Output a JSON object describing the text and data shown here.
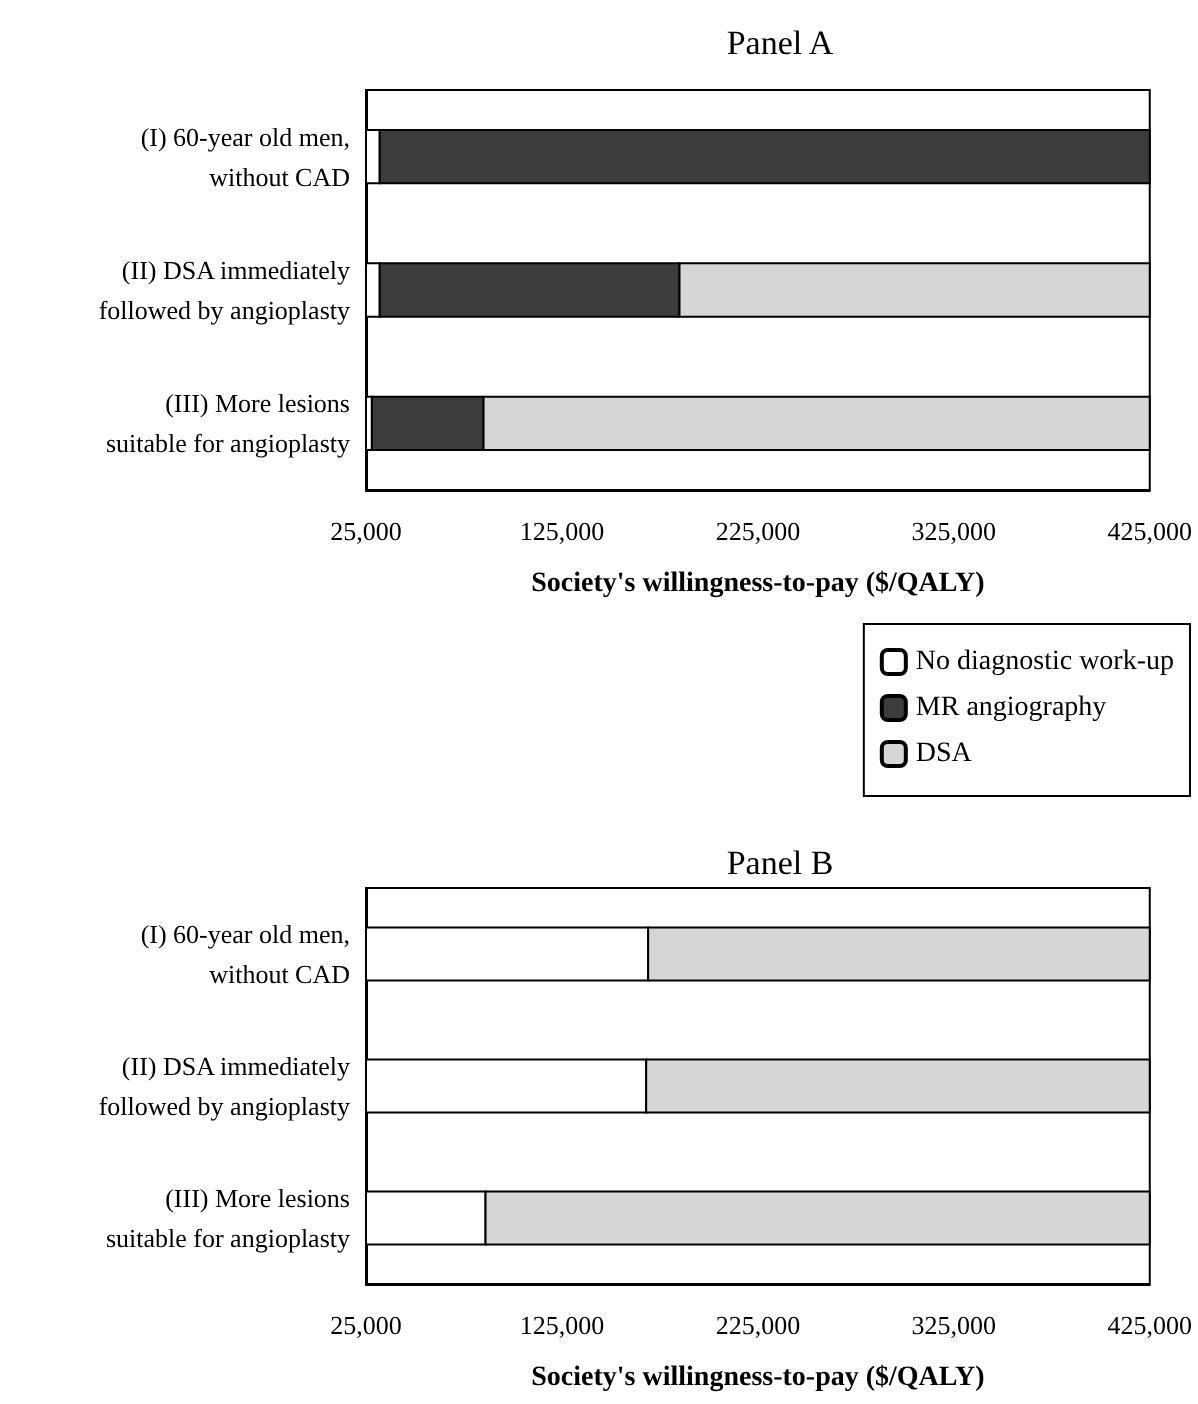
{
  "chart_data": [
    {
      "type": "bar",
      "title": "Panel A",
      "xlabel": "Society's willingness-to-pay ($/QALY)",
      "orientation": "horizontal",
      "stacked": true,
      "categories": [
        "(I) 60-year old men,\nwithout CAD",
        "(II) DSA immediately\nfollowed by angioplasty",
        "(III) More lesions\nsuitable for angioplasty"
      ],
      "series": [
        {
          "color": "#ffffff",
          "values": [
            32000,
            32000,
            28000
          ]
        },
        {
          "color": "#3c3c3c",
          "values": [
            393000,
            153000,
            57000
          ]
        },
        {
          "color": "#d6d6d6",
          "values": [
            null,
            240000,
            340000
          ]
        }
      ],
      "xlim": [
        25000,
        425000
      ],
      "xticks": [
        {
          "value": 25000,
          "label": "25,000"
        },
        {
          "value": 125000,
          "label": "125,000"
        },
        {
          "value": 225000,
          "label": "225,000"
        },
        {
          "value": 325000,
          "label": "325,000"
        },
        {
          "value": 425000,
          "label": "425,000"
        }
      ],
      "legend": false
    },
    {
      "type": "bar",
      "title": "Panel B",
      "xlabel": "Society's willingness-to-pay ($/QALY)",
      "orientation": "horizontal",
      "stacked": true,
      "categories": [
        "(I) 60-year old men,\nwithout CAD",
        "(II) DSA immediately\nfollowed by angioplasty",
        "(III) More lesions\nsuitable for angioplasty"
      ],
      "series": [
        {
          "name": "No diagnostic work-up",
          "color": "#ffffff",
          "values": [
            169000,
            168000,
            86000
          ]
        },
        {
          "name": "MR angiography",
          "color": "#3c3c3c",
          "values": [
            null,
            null,
            null
          ]
        },
        {
          "name": "DSA",
          "color": "#d6d6d6",
          "values": [
            256000,
            257000,
            339000
          ]
        }
      ],
      "xlim": [
        25000,
        425000
      ],
      "xticks": [
        {
          "value": 25000,
          "label": "25,000"
        },
        {
          "value": 125000,
          "label": "125,000"
        },
        {
          "value": 225000,
          "label": "225,000"
        },
        {
          "value": 325000,
          "label": "325,000"
        },
        {
          "value": 425000,
          "label": "425,000"
        }
      ],
      "legend": "top right"
    }
  ]
}
